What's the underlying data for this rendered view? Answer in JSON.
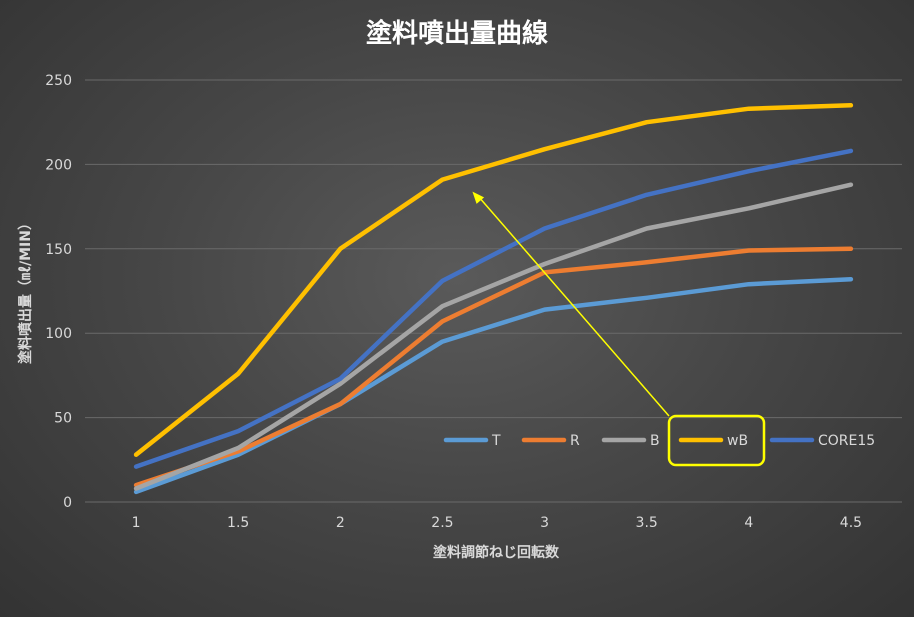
{
  "chart_data": {
    "type": "line",
    "title": "塗料噴出量曲線",
    "xlabel": "塗料調節ねじ回転数",
    "ylabel": "塗料噴出量（㎖/MIN）",
    "categories": [
      "1",
      "1.5",
      "2",
      "2.5",
      "3",
      "3.5",
      "4",
      "4.5"
    ],
    "ylim": [
      0,
      250
    ],
    "yticks": [
      "0",
      "50",
      "100",
      "150",
      "200",
      "250"
    ],
    "grid": true,
    "legend_position": "bottom-right",
    "series": [
      {
        "name": "T",
        "color": "#5b9bd5",
        "values": [
          6,
          28,
          58,
          95,
          114,
          121,
          129,
          132
        ]
      },
      {
        "name": "R",
        "color": "#ed7d31",
        "values": [
          10,
          30,
          58,
          107,
          136,
          142,
          149,
          150
        ]
      },
      {
        "name": "B",
        "color": "#a5a5a5",
        "values": [
          8,
          32,
          70,
          116,
          141,
          162,
          174,
          188
        ]
      },
      {
        "name": "wB",
        "color": "#ffc000",
        "values": [
          28,
          76,
          150,
          191,
          209,
          225,
          233,
          235
        ]
      },
      {
        "name": "CORE15",
        "color": "#4472c4",
        "values": [
          21,
          42,
          73,
          131,
          162,
          182,
          196,
          208
        ]
      }
    ],
    "highlight_series": "wB",
    "annotation_color": "#ffff00"
  }
}
